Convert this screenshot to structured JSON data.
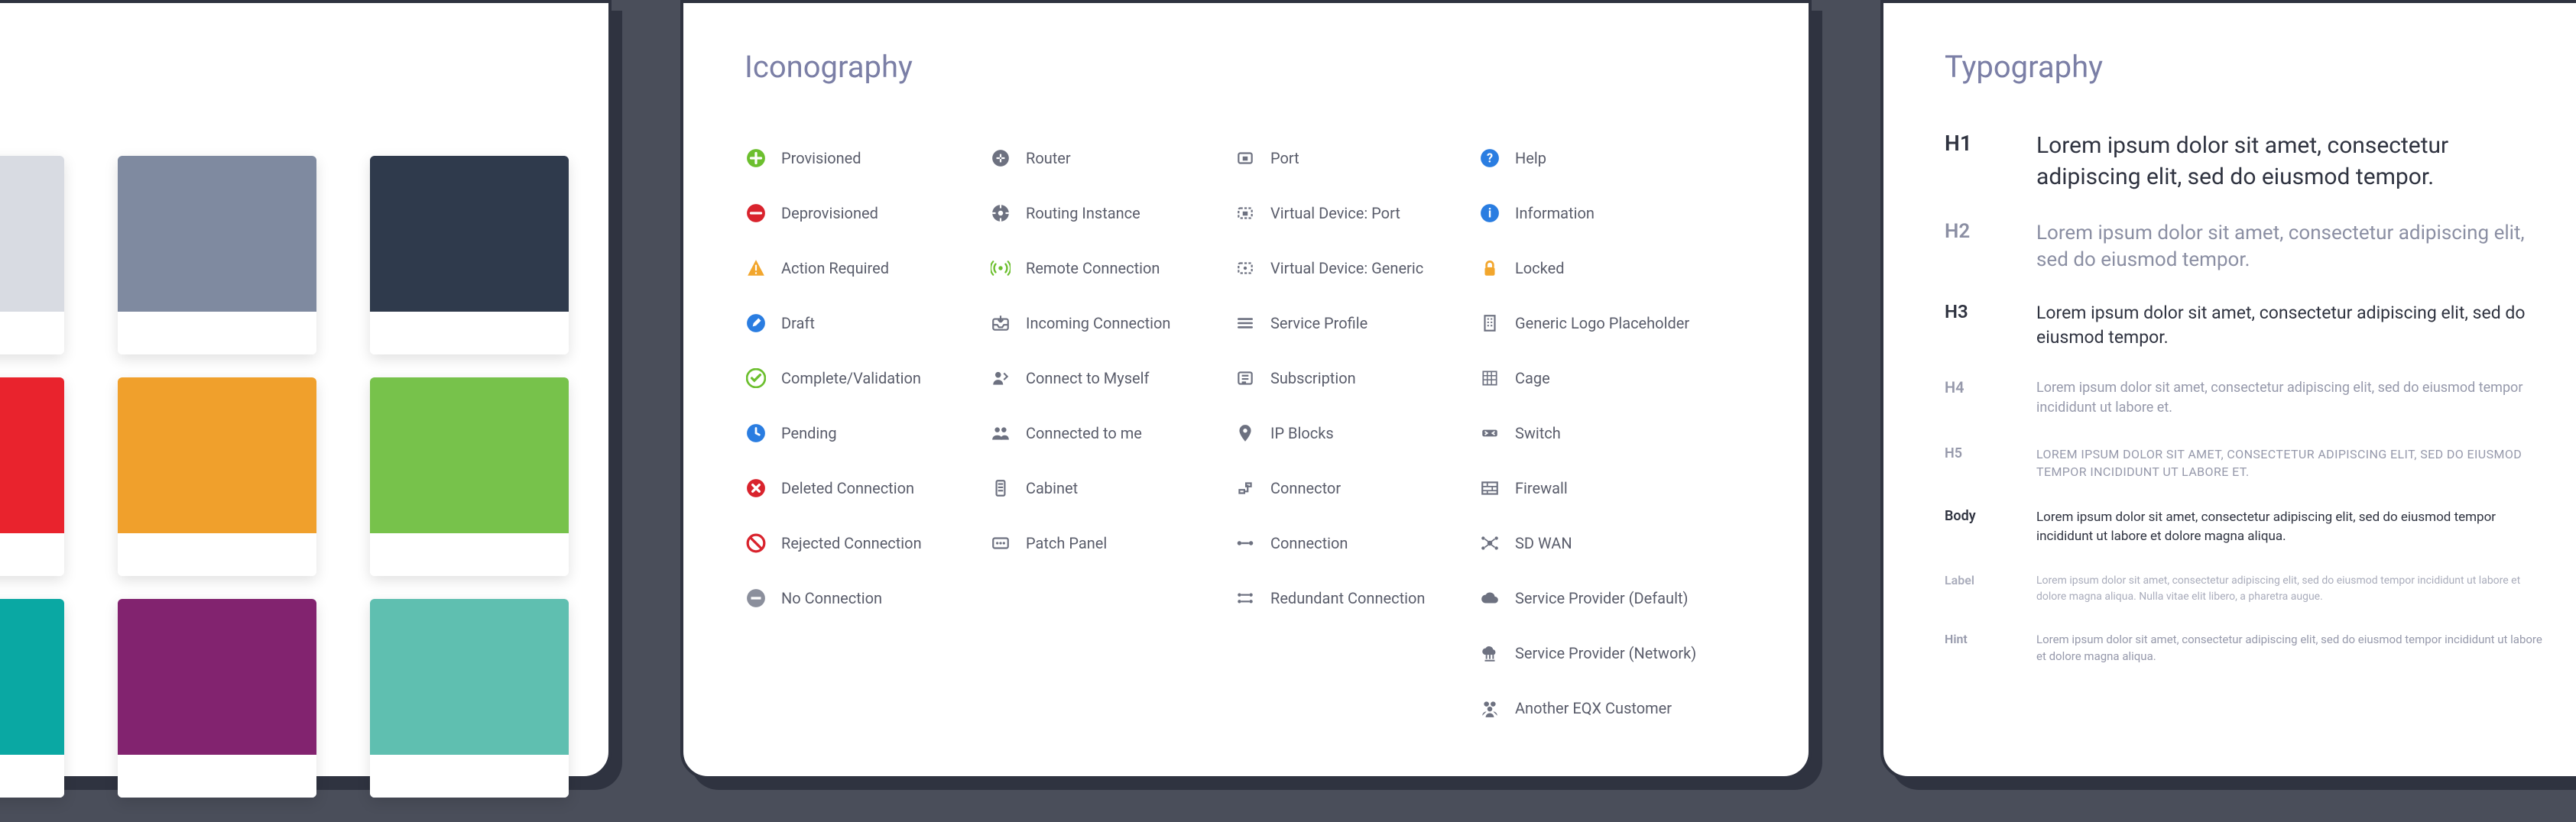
{
  "colors_panel": {
    "swatches": [
      {
        "hex": "#d8dbe2"
      },
      {
        "hex": "#7f8aa0"
      },
      {
        "hex": "#2f3a4c"
      },
      {
        "hex": "#e9232d"
      },
      {
        "hex": "#f0a02c"
      },
      {
        "hex": "#77c24b"
      },
      {
        "hex": "#0aa8a3"
      },
      {
        "hex": "#82236f"
      },
      {
        "hex": "#5fbfb0"
      }
    ],
    "card_bg": "#ffffff",
    "card_border": "#2f3340",
    "shadow": "#2f3340"
  },
  "iconography_panel": {
    "title": "Iconography",
    "columns": [
      [
        {
          "name": "provisioned-icon",
          "label": "Provisioned",
          "color": "#6cbf2e",
          "glyph": "plus-circle"
        },
        {
          "name": "deprovisioned-icon",
          "label": "Deprovisioned",
          "color": "#d9232d",
          "glyph": "minus-circle"
        },
        {
          "name": "action-required-icon",
          "label": "Action Required",
          "color": "#f2a62d",
          "glyph": "warning"
        },
        {
          "name": "draft-icon",
          "label": "Draft",
          "color": "#2a7de1",
          "glyph": "pencil-circle"
        },
        {
          "name": "complete-icon",
          "label": "Complete/Validation",
          "color": "#6cbf2e",
          "glyph": "check-circle"
        },
        {
          "name": "pending-icon",
          "label": "Pending",
          "color": "#2a7de1",
          "glyph": "clock-circle"
        },
        {
          "name": "deleted-icon",
          "label": "Deleted Connection",
          "color": "#d9232d",
          "glyph": "x-circle"
        },
        {
          "name": "rejected-icon",
          "label": "Rejected Connection",
          "color": "#d9232d",
          "glyph": "ban-circle"
        },
        {
          "name": "no-connection-icon",
          "label": "No Connection",
          "color": "#8b8f9c",
          "glyph": "dash-circle"
        }
      ],
      [
        {
          "name": "router-icon",
          "label": "Router",
          "color": "#6d7180",
          "glyph": "router"
        },
        {
          "name": "routing-instance-icon",
          "label": "Routing Instance",
          "color": "#6d7180",
          "glyph": "routing"
        },
        {
          "name": "remote-connection-icon",
          "label": "Remote Connection",
          "color": "#6cbf2e",
          "glyph": "radio"
        },
        {
          "name": "incoming-conn-icon",
          "label": "Incoming Connection",
          "color": "#6d7180",
          "glyph": "inbox"
        },
        {
          "name": "connect-myself-icon",
          "label": "Connect to Myself",
          "color": "#6d7180",
          "glyph": "self"
        },
        {
          "name": "connected-to-me-icon",
          "label": "Connected to me",
          "color": "#6d7180",
          "glyph": "people"
        },
        {
          "name": "cabinet-icon",
          "label": "Cabinet",
          "color": "#6d7180",
          "glyph": "cabinet"
        },
        {
          "name": "patch-panel-icon",
          "label": "Patch Panel",
          "color": "#6d7180",
          "glyph": "panel"
        }
      ],
      [
        {
          "name": "port-icon",
          "label": "Port",
          "color": "#6d7180",
          "glyph": "port"
        },
        {
          "name": "vdevice-port-icon",
          "label": "Virtual Device: Port",
          "color": "#6d7180",
          "glyph": "vport"
        },
        {
          "name": "vdevice-generic-icon",
          "label": "Virtual Device: Generic",
          "color": "#6d7180",
          "glyph": "vgeneric"
        },
        {
          "name": "service-profile-icon",
          "label": "Service Profile",
          "color": "#6d7180",
          "glyph": "profile"
        },
        {
          "name": "subscription-icon",
          "label": "Subscription",
          "color": "#6d7180",
          "glyph": "subscription"
        },
        {
          "name": "ip-blocks-icon",
          "label": "IP Blocks",
          "color": "#6d7180",
          "glyph": "pin"
        },
        {
          "name": "connector-icon",
          "label": "Connector",
          "color": "#6d7180",
          "glyph": "connector"
        },
        {
          "name": "connection-icon",
          "label": "Connection",
          "color": "#6d7180",
          "glyph": "connection"
        },
        {
          "name": "redundant-conn-icon",
          "label": "Redundant Connection",
          "color": "#6d7180",
          "glyph": "redundant"
        }
      ],
      [
        {
          "name": "help-icon",
          "label": "Help",
          "color": "#2a7de1",
          "glyph": "help"
        },
        {
          "name": "info-icon",
          "label": "Information",
          "color": "#2a7de1",
          "glyph": "info"
        },
        {
          "name": "locked-icon",
          "label": "Locked",
          "color": "#f2a62d",
          "glyph": "lock"
        },
        {
          "name": "logo-ph-icon",
          "label": "Generic Logo Placeholder",
          "color": "#6d7180",
          "glyph": "building"
        },
        {
          "name": "cage-icon",
          "label": "Cage",
          "color": "#6d7180",
          "glyph": "cage"
        },
        {
          "name": "switch-icon",
          "label": "Switch",
          "color": "#6d7180",
          "glyph": "switch"
        },
        {
          "name": "firewall-icon",
          "label": "Firewall",
          "color": "#6d7180",
          "glyph": "firewall"
        },
        {
          "name": "sdwan-icon",
          "label": "SD WAN",
          "color": "#6d7180",
          "glyph": "sdwan"
        },
        {
          "name": "sp-default-icon",
          "label": "Service Provider (Default)",
          "color": "#6d7180",
          "glyph": "cloud"
        },
        {
          "name": "sp-network-icon",
          "label": "Service Provider (Network)",
          "color": "#6d7180",
          "glyph": "cloud-net"
        },
        {
          "name": "eqx-customer-icon",
          "label": "Another EQX Customer",
          "color": "#6d7180",
          "glyph": "users"
        }
      ]
    ]
  },
  "typography_panel": {
    "title": "Typography",
    "rows": [
      {
        "tag": "H1",
        "tag_cls": "h1",
        "text": "Lorem ipsum dolor sit amet, consectetur adipiscing elit, sed do eiusmod tempor."
      },
      {
        "tag": "H2",
        "tag_cls": "h2",
        "text": "Lorem ipsum dolor sit amet, consectetur adipiscing elit, sed do eiusmod tempor."
      },
      {
        "tag": "H3",
        "tag_cls": "h3",
        "text": "Lorem ipsum dolor sit amet, consectetur adipiscing elit, sed do eiusmod tempor."
      },
      {
        "tag": "H4",
        "tag_cls": "h4",
        "text": "Lorem ipsum dolor sit amet, consectetur adipiscing elit, sed do eiusmod tempor incididunt ut labore et."
      },
      {
        "tag": "H5",
        "tag_cls": "h5",
        "text": "LOREM IPSUM DOLOR SIT AMET, CONSECTETUR ADIPISCING ELIT, SED DO EIUSMOD TEMPOR INCIDIDUNT UT LABORE ET."
      },
      {
        "tag": "Body",
        "tag_cls": "body",
        "text": "Lorem ipsum dolor sit amet, consectetur adipiscing elit, sed do eiusmod tempor incididunt ut labore et dolore magna aliqua."
      },
      {
        "tag": "Label",
        "tag_cls": "label",
        "text": "Lorem ipsum dolor sit amet, consectetur adipiscing elit, sed do eiusmod tempor incididunt ut labore et dolore magna aliqua. Nulla vitae elit libero, a pharetra augue."
      },
      {
        "tag": "Hint",
        "tag_cls": "hint",
        "text": "Lorem ipsum dolor sit amet, consectetur adipiscing elit, sed do eiusmod tempor incididunt ut labore et dolore magna aliqua."
      }
    ]
  }
}
